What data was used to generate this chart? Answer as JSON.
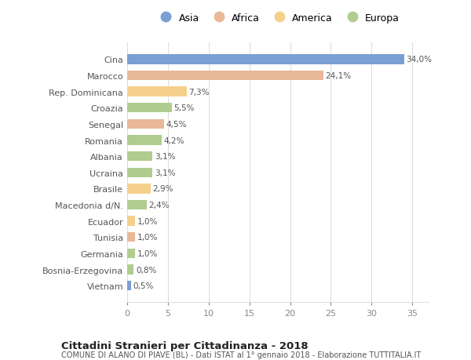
{
  "countries": [
    "Cina",
    "Marocco",
    "Rep. Dominicana",
    "Croazia",
    "Senegal",
    "Romania",
    "Albania",
    "Ucraina",
    "Brasile",
    "Macedonia d/N.",
    "Ecuador",
    "Tunisia",
    "Germania",
    "Bosnia-Erzegovina",
    "Vietnam"
  ],
  "values": [
    34.0,
    24.1,
    7.3,
    5.5,
    4.5,
    4.2,
    3.1,
    3.1,
    2.9,
    2.4,
    1.0,
    1.0,
    1.0,
    0.8,
    0.5
  ],
  "labels": [
    "34,0%",
    "24,1%",
    "7,3%",
    "5,5%",
    "4,5%",
    "4,2%",
    "3,1%",
    "3,1%",
    "2,9%",
    "2,4%",
    "1,0%",
    "1,0%",
    "1,0%",
    "0,8%",
    "0,5%"
  ],
  "categories": [
    "Asia",
    "Africa",
    "America",
    "Europa"
  ],
  "continent": [
    "Asia",
    "Africa",
    "America",
    "Europa",
    "Africa",
    "Europa",
    "Europa",
    "Europa",
    "America",
    "Europa",
    "America",
    "Africa",
    "Europa",
    "Europa",
    "Asia"
  ],
  "colors": {
    "Asia": "#7b9fd4",
    "Africa": "#e8b899",
    "America": "#f5d08c",
    "Europa": "#b0cc8f"
  },
  "background_color": "#ffffff",
  "title": "Cittadini Stranieri per Cittadinanza - 2018",
  "subtitle": "COMUNE DI ALANO DI PIAVE (BL) - Dati ISTAT al 1° gennaio 2018 - Elaborazione TUTTITALIA.IT",
  "xlim": [
    0,
    37
  ],
  "xticks": [
    0,
    5,
    10,
    15,
    20,
    25,
    30,
    35
  ]
}
